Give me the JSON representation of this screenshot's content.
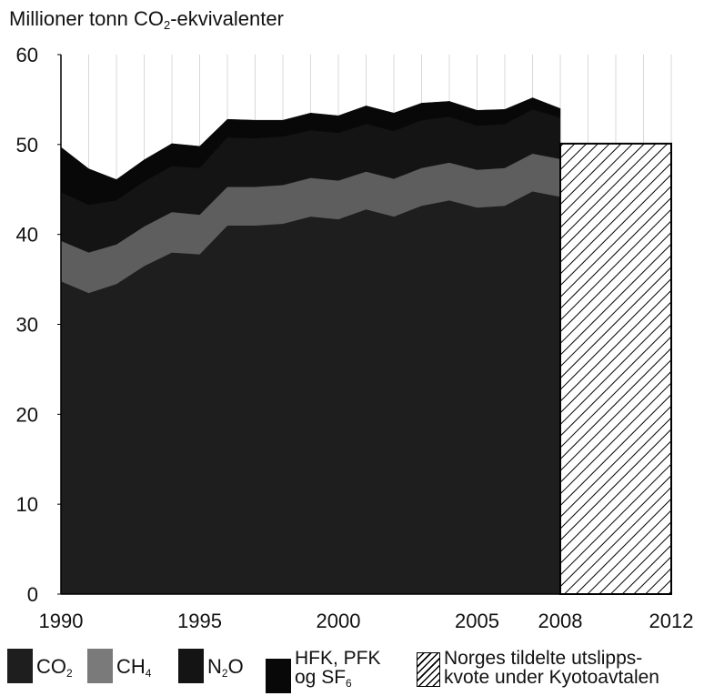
{
  "chart_data": {
    "type": "area",
    "ylabel_main": "Millioner tonn CO",
    "ylabel_sub": "2",
    "ylabel_tail": "-ekvivalenter",
    "ylim": [
      0,
      60
    ],
    "yticks": [
      "0",
      "10",
      "20",
      "30",
      "40",
      "50",
      "60"
    ],
    "xticks": [
      "1990",
      "1995",
      "2000",
      "2005",
      "2008",
      "2012"
    ],
    "xtick_values": [
      1990,
      1995,
      2000,
      2005,
      2008,
      2012
    ],
    "x": [
      1990,
      1991,
      1992,
      1993,
      1994,
      1995,
      1996,
      1997,
      1998,
      1999,
      2000,
      2001,
      2002,
      2003,
      2004,
      2005,
      2006,
      2007,
      2008
    ],
    "series": [
      {
        "name": "CO2",
        "color": "#1e1e1e",
        "values": [
          34.8,
          33.5,
          34.5,
          36.5,
          38.0,
          37.8,
          41.0,
          41.0,
          41.2,
          42.0,
          41.7,
          42.8,
          42.0,
          43.2,
          43.8,
          43.0,
          43.2,
          44.8,
          44.2
        ]
      },
      {
        "name": "CH4",
        "color": "#5e5e5e",
        "values": [
          4.5,
          4.5,
          4.4,
          4.4,
          4.5,
          4.4,
          4.3,
          4.3,
          4.3,
          4.3,
          4.3,
          4.2,
          4.2,
          4.2,
          4.2,
          4.2,
          4.2,
          4.2,
          4.2
        ]
      },
      {
        "name": "N2O",
        "color": "#141414",
        "values": [
          5.4,
          5.3,
          4.9,
          5.0,
          5.1,
          5.2,
          5.5,
          5.4,
          5.4,
          5.3,
          5.3,
          5.3,
          5.3,
          5.3,
          5.1,
          4.9,
          4.9,
          4.9,
          4.6
        ]
      },
      {
        "name": "HFK, PFK og SF6",
        "color": "#080808",
        "values": [
          5.0,
          4.0,
          2.3,
          2.4,
          2.5,
          2.4,
          2.0,
          2.0,
          1.8,
          1.9,
          1.9,
          2.0,
          2.0,
          1.9,
          1.7,
          1.7,
          1.6,
          1.3,
          1.0
        ]
      }
    ],
    "kyoto": {
      "name": "Norges tildelte utslippskvote under Kyotoavtalen",
      "from": 2008,
      "to": 2012,
      "value": 50.1
    }
  },
  "legend": {
    "co2": {
      "main": "CO",
      "sub": "2"
    },
    "ch4": {
      "main": "CH",
      "sub": "4"
    },
    "n2o": {
      "main": "N",
      "sub": "2",
      "tail": "O"
    },
    "hfk": {
      "line1": "HFK, PFK",
      "line2_main": "og SF",
      "line2_sub": "6"
    },
    "kyoto": {
      "line1": "Norges tildelte utslipps-",
      "line2": "kvote under Kyotoavtalen"
    }
  }
}
